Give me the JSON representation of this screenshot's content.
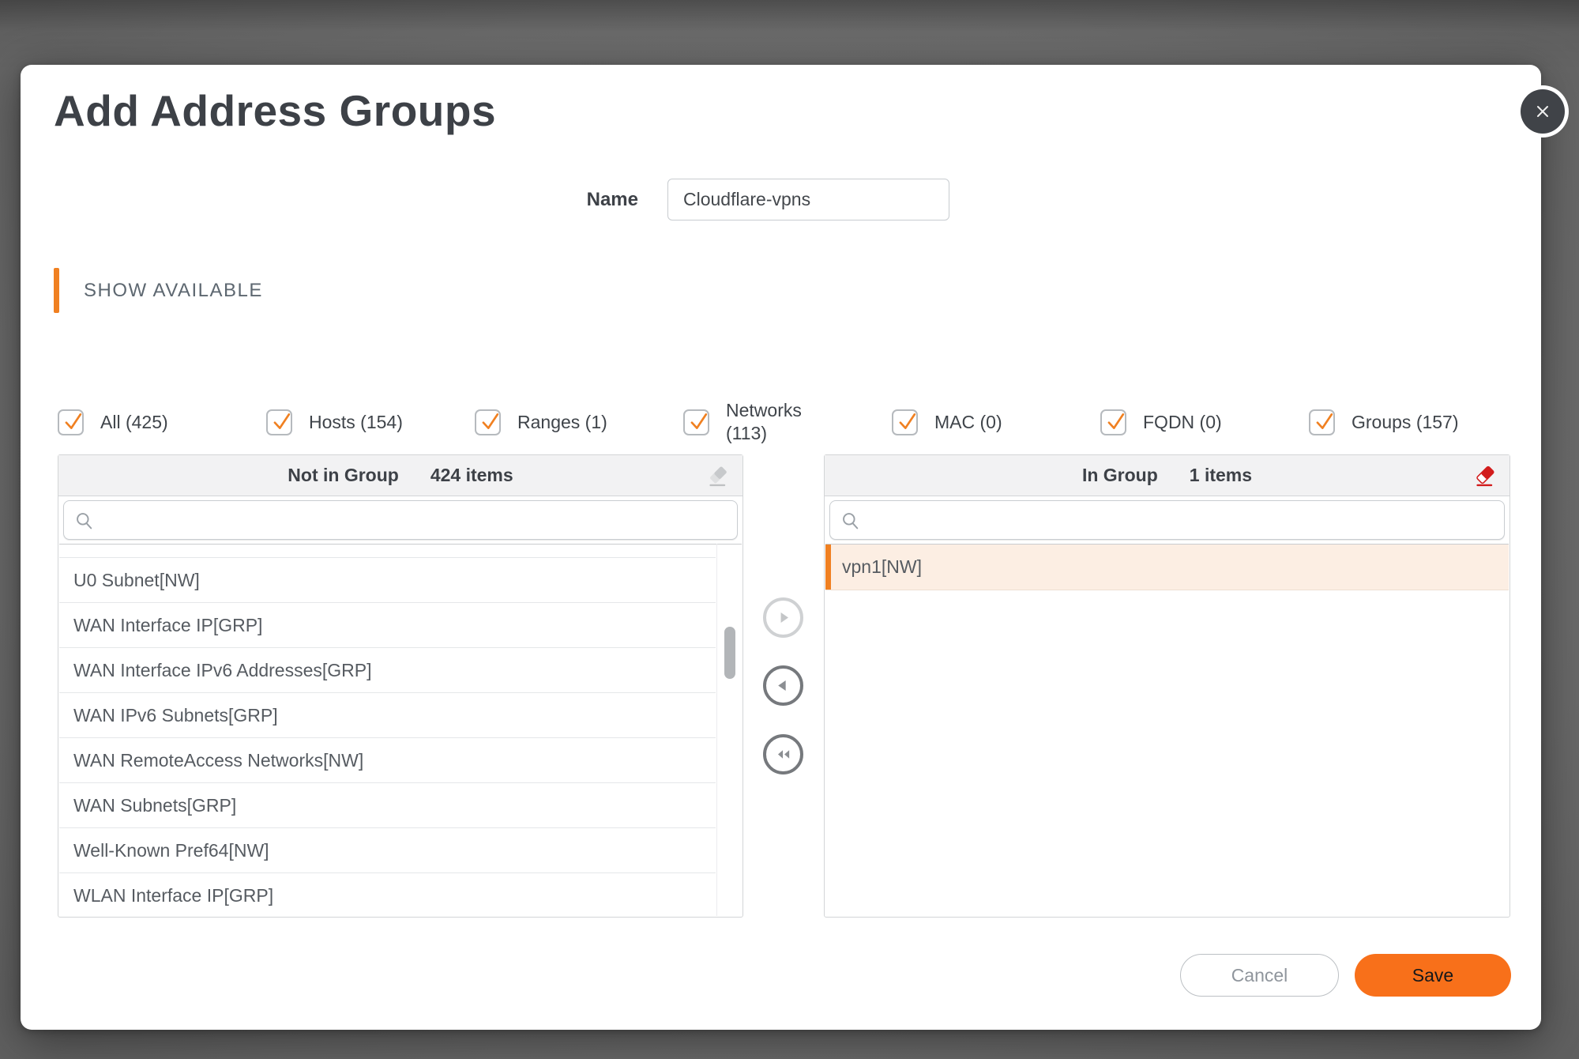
{
  "colors": {
    "accent_orange": "#F08021",
    "save_orange": "#F8701A",
    "eraser_red": "#D21C1C",
    "selected_row_bg": "#FCEEE3"
  },
  "modal": {
    "title": "Add Address Groups"
  },
  "name_field": {
    "label": "Name",
    "value": "Cloudflare-vpns"
  },
  "section": {
    "label": "SHOW AVAILABLE"
  },
  "filters": [
    {
      "label": "All (425)",
      "checked": true
    },
    {
      "label": "Hosts (154)",
      "checked": true
    },
    {
      "label": "Ranges (1)",
      "checked": true
    },
    {
      "label": "Networks (113)",
      "checked": true,
      "wrap": true
    },
    {
      "label": "MAC (0)",
      "checked": true
    },
    {
      "label": "FQDN (0)",
      "checked": true
    },
    {
      "label": "Groups (157)",
      "checked": true
    }
  ],
  "left_panel": {
    "title": "Not in Group",
    "count": "424 items",
    "search_value": "",
    "items": [
      {
        "label": "U0 Subnet[NW]"
      },
      {
        "label": "WAN Interface IP[GRP]"
      },
      {
        "label": "WAN Interface IPv6 Addresses[GRP]"
      },
      {
        "label": "WAN IPv6 Subnets[GRP]"
      },
      {
        "label": "WAN RemoteAccess Networks[NW]"
      },
      {
        "label": "WAN Subnets[GRP]"
      },
      {
        "label": "Well-Known Pref64[NW]"
      },
      {
        "label": "WLAN Interface IP[GRP]"
      }
    ]
  },
  "right_panel": {
    "title": "In Group",
    "count": "1 items",
    "search_value": "",
    "items": [
      {
        "label": "vpn1[NW]",
        "selected": true
      }
    ]
  },
  "footer": {
    "cancel_label": "Cancel",
    "save_label": "Save"
  }
}
